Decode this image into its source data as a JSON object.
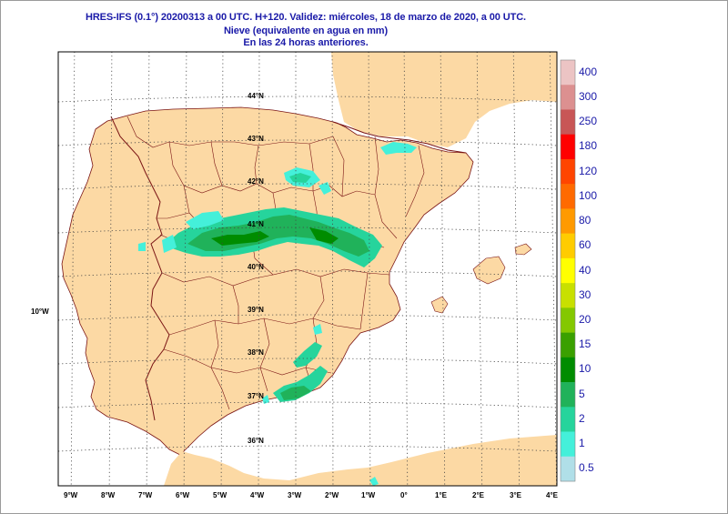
{
  "title": {
    "line1": "HRES-IFS (0.1°) 20200313 a 00 UTC.  H+120. Validez: miércoles, 18 de marzo de 2020,  a  00 UTC.",
    "line2": "Nieve (equivalente en agua en mm)",
    "line3": "En las 24 horas anteriores."
  },
  "map": {
    "region": "Iberian Peninsula",
    "lon_range": [
      -9.5,
      4.0
    ],
    "lat_range": [
      35.0,
      45.0
    ],
    "lon_labels": [
      "9°W",
      "8°W",
      "7°W",
      "6°W",
      "5°W",
      "4°W",
      "3°W",
      "2°W",
      "1°W",
      "0°",
      "1°E",
      "2°E",
      "3°E",
      "4°E"
    ],
    "lat_labels": [
      "44°N",
      "43°N",
      "42°N",
      "41°N",
      "40°N",
      "39°N",
      "38°N",
      "37°N",
      "36°N"
    ],
    "side_label": "10°W",
    "colors": {
      "land": "#fcd9a4",
      "sea": "#ffffff",
      "border": "#7a1414",
      "grid": "#444444"
    }
  },
  "legend": {
    "title": "",
    "levels": [
      {
        "label": "400",
        "color": "#ecc4c4"
      },
      {
        "label": "300",
        "color": "#dc9090"
      },
      {
        "label": "250",
        "color": "#c85656"
      },
      {
        "label": "180",
        "color": "#ff0000"
      },
      {
        "label": "120",
        "color": "#ff4500"
      },
      {
        "label": "100",
        "color": "#ff6a00"
      },
      {
        "label": "80",
        "color": "#ff9a00"
      },
      {
        "label": "60",
        "color": "#ffcc00"
      },
      {
        "label": "40",
        "color": "#ffff00"
      },
      {
        "label": "30",
        "color": "#c8e000"
      },
      {
        "label": "20",
        "color": "#84c800"
      },
      {
        "label": "15",
        "color": "#3aa000"
      },
      {
        "label": "10",
        "color": "#008c00"
      },
      {
        "label": "5",
        "color": "#20b25a"
      },
      {
        "label": "2",
        "color": "#26d49c"
      },
      {
        "label": "1",
        "color": "#44f0da"
      },
      {
        "label": "0.5",
        "color": "#b0dfe8"
      }
    ]
  }
}
